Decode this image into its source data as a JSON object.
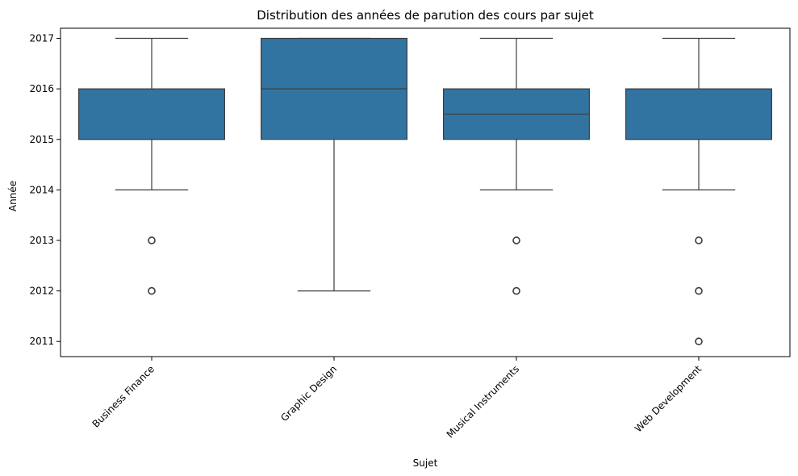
{
  "chart_data": {
    "type": "box",
    "title": "Distribution des années de parution des cours par sujet",
    "xlabel": "Sujet",
    "ylabel": "Année",
    "ylim": [
      2010.7,
      2017.2
    ],
    "yticks": [
      2011,
      2012,
      2013,
      2014,
      2015,
      2016,
      2017
    ],
    "categories": [
      "Business Finance",
      "Graphic Design",
      "Musical Instruments",
      "Web Development"
    ],
    "boxes": [
      {
        "category": "Business Finance",
        "whisker_low": 2014,
        "q1": 2015,
        "median": 2015,
        "q3": 2016,
        "whisker_high": 2017,
        "outliers": [
          2013,
          2012
        ]
      },
      {
        "category": "Graphic Design",
        "whisker_low": 2012,
        "q1": 2015,
        "median": 2016,
        "q3": 2017,
        "whisker_high": 2017,
        "outliers": []
      },
      {
        "category": "Musical Instruments",
        "whisker_low": 2014,
        "q1": 2015,
        "median": 2015.5,
        "q3": 2016,
        "whisker_high": 2017,
        "outliers": [
          2013,
          2012
        ]
      },
      {
        "category": "Web Development",
        "whisker_low": 2014,
        "q1": 2015,
        "median": 2015,
        "q3": 2016,
        "whisker_high": 2017,
        "outliers": [
          2013,
          2012,
          2011
        ]
      }
    ],
    "grid": false,
    "colors": {
      "box_fill": "#3274a1",
      "line": "#3d3d3d"
    }
  }
}
